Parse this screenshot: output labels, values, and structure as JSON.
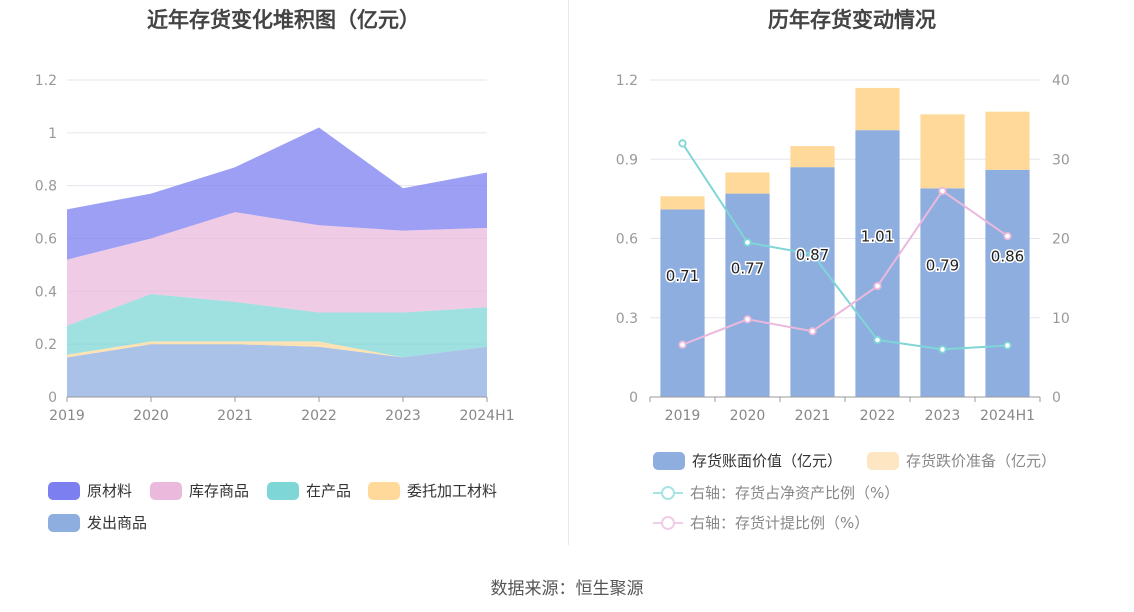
{
  "left_chart": {
    "title": "近年存货变化堆积图（亿元）",
    "legend": [
      {
        "label": "原材料",
        "color": "#7b7ff0"
      },
      {
        "label": "库存商品",
        "color": "#ebb9dc"
      },
      {
        "label": "在产品",
        "color": "#7fd6d6"
      },
      {
        "label": "委托加工材料",
        "color": "#ffd99a"
      },
      {
        "label": "发出商品",
        "color": "#8eaee0"
      }
    ]
  },
  "right_chart": {
    "title": "历年存货变动情况",
    "legend": [
      {
        "label": "存货账面价值（亿元）",
        "color": "#8eaee0",
        "kind": "bar"
      },
      {
        "label": "存货跌价准备（亿元）",
        "color": "#ffe0b0",
        "kind": "bar",
        "muted": true
      },
      {
        "label": "右轴：存货占净资产比例（%）",
        "color": "#7fd6d6",
        "kind": "line",
        "muted": true
      },
      {
        "label": "右轴：存货计提比例（%）",
        "color": "#ebb9dc",
        "kind": "line",
        "muted": true
      }
    ]
  },
  "source_text": "数据来源：恒生聚源",
  "chart_data": [
    {
      "type": "area",
      "stacked": true,
      "title": "近年存货变化堆积图（亿元）",
      "categories": [
        "2019",
        "2020",
        "2021",
        "2022",
        "2023",
        "2024H1"
      ],
      "ylim": [
        0,
        1.2
      ],
      "y_ticks": [
        "0",
        "0.2",
        "0.4",
        "0.6",
        "0.8",
        "1",
        "1.2"
      ],
      "grid": true,
      "legend_position": "bottom",
      "series": [
        {
          "name": "发出商品",
          "color": "#8eaee0",
          "values": [
            0.15,
            0.2,
            0.2,
            0.19,
            0.15,
            0.19
          ]
        },
        {
          "name": "委托加工材料",
          "color": "#ffd99a",
          "values": [
            0.01,
            0.01,
            0.01,
            0.02,
            0.0,
            0.0
          ]
        },
        {
          "name": "在产品",
          "color": "#7fd6d6",
          "values": [
            0.11,
            0.18,
            0.15,
            0.11,
            0.17,
            0.15
          ]
        },
        {
          "name": "库存商品",
          "color": "#ebb9dc",
          "values": [
            0.25,
            0.21,
            0.34,
            0.33,
            0.31,
            0.3
          ]
        },
        {
          "name": "原材料",
          "color": "#7b7ff0",
          "values": [
            0.19,
            0.17,
            0.17,
            0.37,
            0.16,
            0.21
          ]
        }
      ]
    },
    {
      "type": "bar",
      "stacked": true,
      "title": "历年存货变动情况",
      "categories": [
        "2019",
        "2020",
        "2021",
        "2022",
        "2023",
        "2024H1"
      ],
      "ylim": [
        0,
        1.2
      ],
      "y_ticks": [
        "0",
        "0.3",
        "0.6",
        "0.9",
        "1.2"
      ],
      "y2lim": [
        0,
        40
      ],
      "y2_ticks": [
        "0",
        "10",
        "20",
        "30",
        "40"
      ],
      "grid": true,
      "legend_position": "bottom",
      "series": [
        {
          "name": "存货账面价值（亿元）",
          "color": "#8eaee0",
          "values": [
            0.71,
            0.77,
            0.87,
            1.01,
            0.79,
            0.86
          ],
          "labels": [
            "0.71",
            "0.77",
            "0.87",
            "1.01",
            "0.79",
            "0.86"
          ]
        },
        {
          "name": "存货跌价准备（亿元）",
          "color": "#ffd99a",
          "values": [
            0.05,
            0.08,
            0.08,
            0.16,
            0.28,
            0.22
          ]
        }
      ],
      "line_series": [
        {
          "name": "右轴：存货占净资产比例（%）",
          "color": "#7fd6d6",
          "axis": "right",
          "values": [
            32.0,
            19.5,
            18.0,
            7.2,
            6.0,
            6.5
          ]
        },
        {
          "name": "右轴：存货计提比例（%）",
          "color": "#ebb9dc",
          "axis": "right",
          "values": [
            6.6,
            9.8,
            8.3,
            14.0,
            26.0,
            20.3
          ]
        }
      ]
    }
  ]
}
